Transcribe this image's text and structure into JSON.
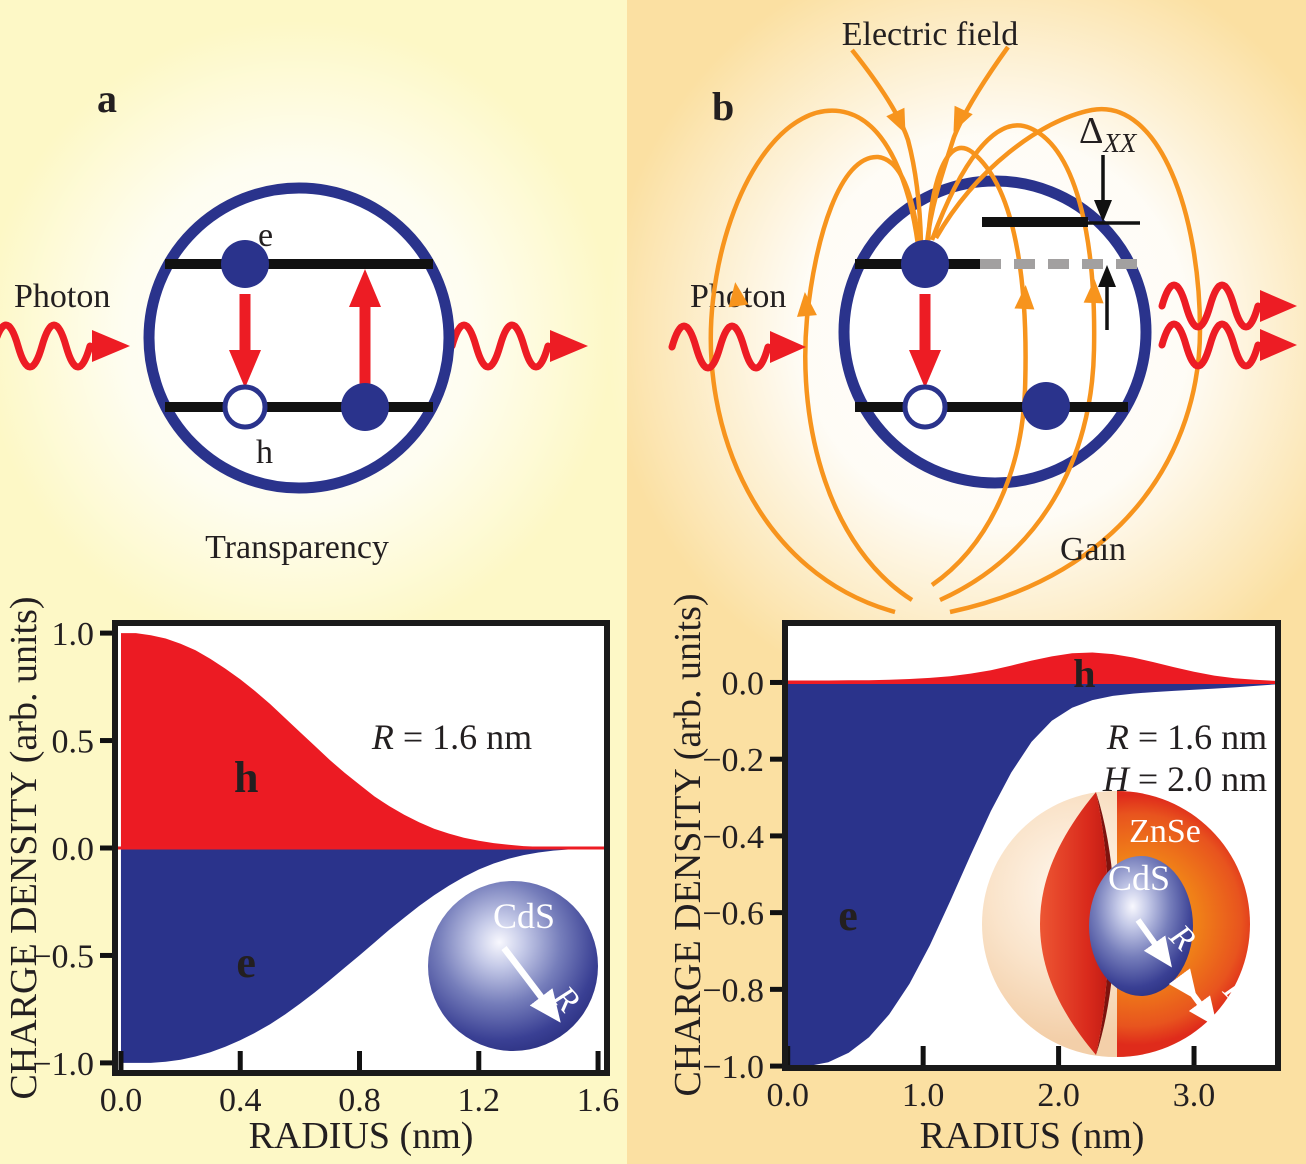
{
  "figure_title": "Quantum dot lasing figure",
  "colors": {
    "red": "#ED1C24",
    "blue": "#2A338B",
    "orange_field": "#F7941D",
    "bg_left_panel": "#FDF8C6",
    "bg_right_panel": "#FBE0A2",
    "dashed_level_gray": "#A2A0A0",
    "level_black": "#111111"
  },
  "panel_a": {
    "label": "a",
    "photon": "Photon",
    "electron": "e",
    "hole": "h",
    "caption": "Transparency"
  },
  "panel_b": {
    "label": "b",
    "electric_field": "Electric field",
    "photon": "Photon",
    "caption": "Gain",
    "delta_symbol": "Δ",
    "delta_sub": "XX"
  },
  "chart_data": [
    {
      "id": "chart-a",
      "type": "area",
      "title": "",
      "xlabel": "RADIUS (nm)",
      "ylabel": "CHARGE DENSITY (arb. units)",
      "xlim": [
        0,
        1.63
      ],
      "ylim": [
        -1.0,
        1.0
      ],
      "grid": false,
      "annotation": [
        {
          "italic": "R",
          "text": " = 1.6 nm"
        }
      ],
      "xticks": [
        {
          "v": 0.0,
          "label": "0.0"
        },
        {
          "v": 0.4,
          "label": "0.4"
        },
        {
          "v": 0.8,
          "label": "0.8"
        },
        {
          "v": 1.2,
          "label": "1.2"
        },
        {
          "v": 1.6,
          "label": "1.6"
        }
      ],
      "yticks": [
        {
          "v": 1.0,
          "label": "1.0"
        },
        {
          "v": 0.5,
          "label": "0.5"
        },
        {
          "v": 0.0,
          "label": "0.0"
        },
        {
          "v": -0.5,
          "label": "−0.5"
        },
        {
          "v": -1.0,
          "label": "−1.0"
        }
      ],
      "zero_line": {
        "color": "#ED1C24",
        "width": 3
      },
      "series": [
        {
          "name": "hole charge density",
          "label": "h",
          "label_at": [
            0.42,
            0.26
          ],
          "label_size": 44,
          "color": "#EC1B23",
          "x": [
            0,
            0.05,
            0.1,
            0.15,
            0.2,
            0.25,
            0.3,
            0.35,
            0.4,
            0.45,
            0.5,
            0.55,
            0.6,
            0.65,
            0.7,
            0.75,
            0.8,
            0.85,
            0.9,
            0.95,
            1.0,
            1.05,
            1.1,
            1.15,
            1.2,
            1.25,
            1.3,
            1.35,
            1.4,
            1.45,
            1.5,
            1.55,
            1.63
          ],
          "y": [
            1.0,
            1.0,
            0.99,
            0.975,
            0.95,
            0.92,
            0.88,
            0.835,
            0.785,
            0.73,
            0.67,
            0.605,
            0.54,
            0.475,
            0.41,
            0.35,
            0.295,
            0.24,
            0.195,
            0.155,
            0.12,
            0.09,
            0.067,
            0.048,
            0.034,
            0.023,
            0.015,
            0.009,
            0.006,
            0.004,
            0.003,
            0.002,
            0.002
          ]
        },
        {
          "name": "electron charge density",
          "label": "e",
          "label_at": [
            0.42,
            -0.6
          ],
          "label_size": 44,
          "color": "#2A338B",
          "x": [
            0,
            0.05,
            0.1,
            0.15,
            0.2,
            0.25,
            0.3,
            0.35,
            0.4,
            0.45,
            0.5,
            0.55,
            0.6,
            0.65,
            0.7,
            0.75,
            0.8,
            0.85,
            0.9,
            0.95,
            1.0,
            1.05,
            1.1,
            1.15,
            1.2,
            1.25,
            1.3,
            1.35,
            1.4,
            1.45,
            1.5,
            1.55,
            1.63
          ],
          "y": [
            -1.0,
            -1.0,
            -1.0,
            -0.995,
            -0.985,
            -0.97,
            -0.95,
            -0.925,
            -0.895,
            -0.86,
            -0.82,
            -0.775,
            -0.725,
            -0.672,
            -0.615,
            -0.557,
            -0.5,
            -0.44,
            -0.38,
            -0.325,
            -0.27,
            -0.22,
            -0.175,
            -0.135,
            -0.1,
            -0.072,
            -0.05,
            -0.033,
            -0.021,
            -0.012,
            -0.007,
            -0.004,
            -0.003
          ]
        }
      ],
      "inset": {
        "material": "CdS",
        "radius_label": "R"
      }
    },
    {
      "id": "chart-b",
      "type": "area",
      "title": "",
      "xlabel": "RADIUS (nm)",
      "ylabel": "CHARGE DENSITY (arb. units)",
      "xlim": [
        0,
        3.62
      ],
      "ylim": [
        -1.0,
        0.155
      ],
      "grid": false,
      "annotation": [
        {
          "italic": "R",
          "text": " = 1.6 nm"
        },
        {
          "italic": "H",
          "text": " = 2.0 nm"
        }
      ],
      "xticks": [
        {
          "v": 0.0,
          "label": "0.0"
        },
        {
          "v": 1.0,
          "label": "1.0"
        },
        {
          "v": 2.0,
          "label": "2.0"
        },
        {
          "v": 3.0,
          "label": "3.0"
        }
      ],
      "yticks": [
        {
          "v": 0.0,
          "label": "0.0"
        },
        {
          "v": -0.2,
          "label": "−0.2"
        },
        {
          "v": -0.4,
          "label": "−0.4"
        },
        {
          "v": -0.6,
          "label": "−0.6"
        },
        {
          "v": -0.8,
          "label": "−0.8"
        },
        {
          "v": -1.0,
          "label": "−1.0"
        }
      ],
      "zero_line": {
        "color": "#ED1C24",
        "width": 3
      },
      "series": [
        {
          "name": "hole charge density",
          "label": "h",
          "label_at": [
            2.19,
            -0.012
          ],
          "label_size": 40,
          "color": "#EC1B23",
          "x": [
            0,
            0.15,
            0.3,
            0.45,
            0.6,
            0.75,
            0.9,
            1.05,
            1.2,
            1.35,
            1.5,
            1.65,
            1.8,
            1.95,
            2.1,
            2.25,
            2.4,
            2.55,
            2.7,
            2.85,
            3.0,
            3.15,
            3.3,
            3.45,
            3.6
          ],
          "y": [
            0.005,
            0.005,
            0.005,
            0.006,
            0.006,
            0.007,
            0.009,
            0.012,
            0.016,
            0.023,
            0.032,
            0.044,
            0.057,
            0.068,
            0.076,
            0.078,
            0.074,
            0.065,
            0.053,
            0.04,
            0.028,
            0.018,
            0.011,
            0.007,
            0.004
          ]
        },
        {
          "name": "electron charge density",
          "label": "e",
          "label_at": [
            0.445,
            -0.645
          ],
          "label_size": 44,
          "color": "#2A338B",
          "x": [
            0,
            0.15,
            0.3,
            0.45,
            0.6,
            0.75,
            0.9,
            1.05,
            1.2,
            1.35,
            1.5,
            1.65,
            1.8,
            1.95,
            2.1,
            2.25,
            2.4,
            2.55,
            2.7,
            2.85,
            3.0,
            3.15,
            3.3,
            3.45,
            3.6
          ],
          "y": [
            -1.0,
            -1.0,
            -0.99,
            -0.965,
            -0.925,
            -0.865,
            -0.785,
            -0.685,
            -0.57,
            -0.45,
            -0.335,
            -0.235,
            -0.155,
            -0.1,
            -0.066,
            -0.046,
            -0.035,
            -0.029,
            -0.025,
            -0.022,
            -0.019,
            -0.016,
            -0.013,
            -0.009,
            -0.005
          ]
        }
      ],
      "inset": {
        "shell": "ZnSe",
        "core": "CdS",
        "radius_label": "R",
        "shell_label": "H"
      }
    }
  ]
}
